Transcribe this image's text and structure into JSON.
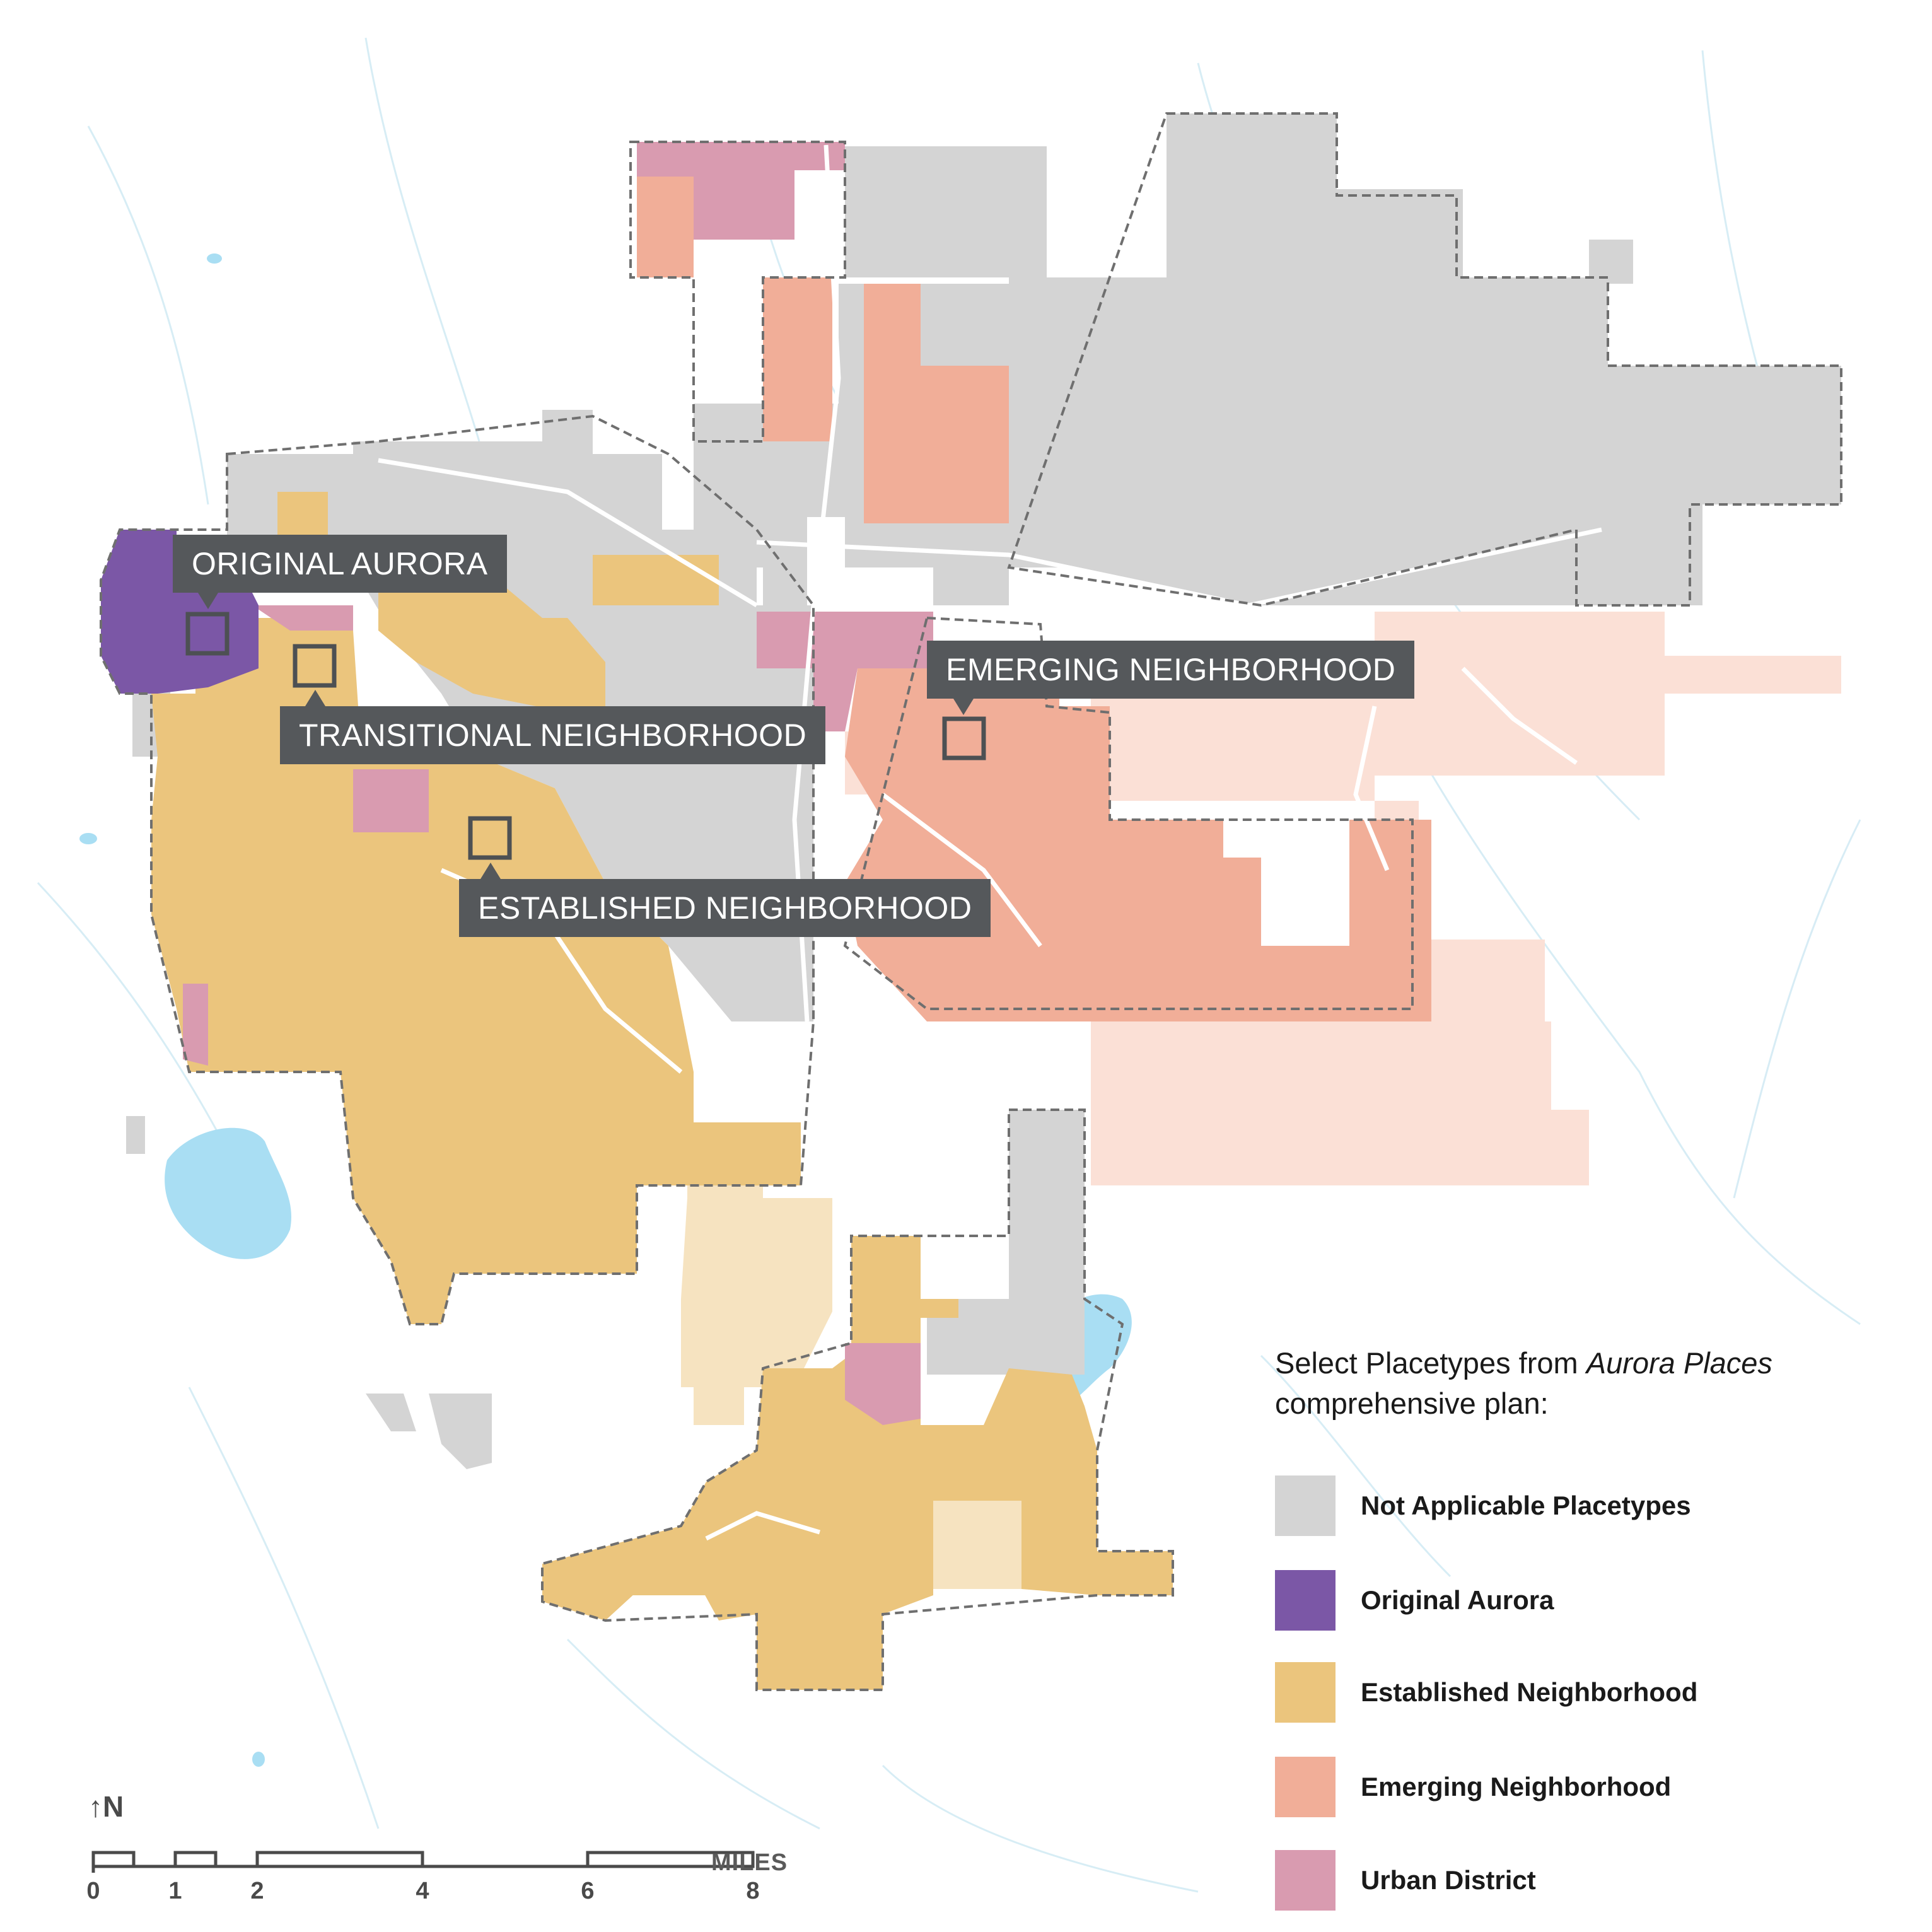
{
  "callouts": {
    "original_aurora": "ORIGINAL AURORA",
    "transitional": "TRANSITIONAL  NEIGHBORHOOD",
    "established": "ESTABLISHED NEIGHBORHOOD",
    "emerging": "EMERGING NEIGHBORHOOD"
  },
  "legend": {
    "title_before": "Select Placetypes from ",
    "title_italic": "Aurora Places",
    "title_after": "comprehensive plan:",
    "items": [
      {
        "label": "Not Applicable Placetypes",
        "color": "#d4d4d4"
      },
      {
        "label": "Original Aurora",
        "color": "#7b57a6"
      },
      {
        "label": "Established Neighborhood",
        "color": "#ebc57d"
      },
      {
        "label": "Emerging Neighborhood",
        "color": "#f1ae98"
      },
      {
        "label": "Urban District",
        "color": "#d99bb0"
      }
    ]
  },
  "colors": {
    "not_applicable": "#d4d4d4",
    "original_aurora": "#7b57a6",
    "established": "#ebc57d",
    "established_light": "#f6e3c0",
    "emerging": "#f1ae98",
    "emerging_light": "#fbe0d6",
    "urban_district": "#d99bb0",
    "water": "#a9def3",
    "streams": "#cfe9f3",
    "callout_bg": "#55585b"
  },
  "north_arrow": {
    "label": "N",
    "icon": "arrow-up-icon"
  },
  "scale": {
    "unit": "MILES",
    "ticks": [
      "0",
      "1",
      "2",
      "4",
      "6",
      "8"
    ]
  }
}
